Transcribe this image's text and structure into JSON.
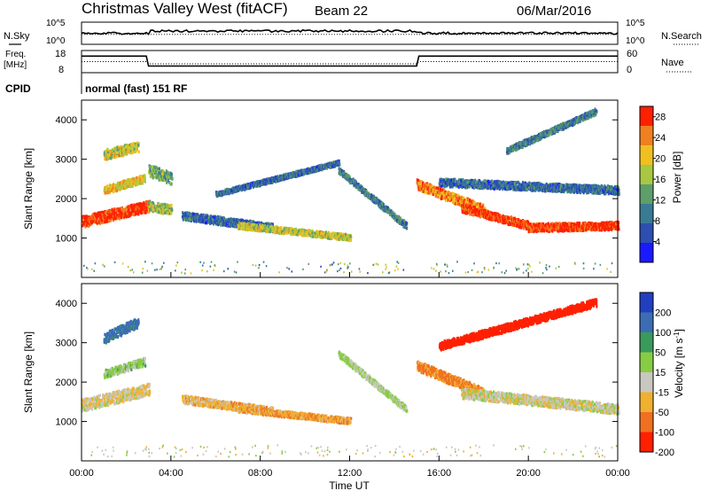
{
  "header": {
    "station": "Christmas Valley West (fitACF)",
    "beam": "Beam 22",
    "date": "06/Mar/2016"
  },
  "summary_panels": {
    "nsky": {
      "label": "N.Sky",
      "tick_top": "10^5",
      "tick_bottom": "10^0"
    },
    "nsearch": {
      "label": "N.Search",
      "tick_top": "10^5",
      "tick_bottom": "10^0"
    },
    "freq": {
      "label_line1": "Freq.",
      "label_line2": "[MHz]",
      "tick_top": "18",
      "tick_bottom": "8"
    },
    "nave": {
      "label": "Nave",
      "tick_top": "60",
      "tick_bottom": "0"
    },
    "cpid": {
      "label": "CPID",
      "text": "normal (fast) 151 RF"
    }
  },
  "chart_data": [
    {
      "type": "heatmap",
      "name": "power",
      "ylabel": "Slant Range [km]",
      "ylim": [
        0,
        4500
      ],
      "yticks": [
        "1000",
        "2000",
        "3000",
        "4000"
      ],
      "xlim": [
        "00:00",
        "24:00"
      ],
      "colorbar": {
        "label": "Power [dB]",
        "ticks": [
          "4",
          "8",
          "12",
          "16",
          "20",
          "24",
          "28"
        ],
        "range": [
          0,
          30
        ]
      },
      "colors": [
        "#1a1aff",
        "#2d4fb0",
        "#3a7a95",
        "#5f9e6a",
        "#a8c842",
        "#f0c020",
        "#f08020",
        "#ff2000"
      ],
      "features": [
        {
          "t": [
            0.0,
            3.0
          ],
          "r0": 1400,
          "r1": 1800,
          "w": 280,
          "p": 28
        },
        {
          "t": [
            1.0,
            2.8
          ],
          "r0": 2200,
          "r1": 2500,
          "w": 200,
          "p": 20
        },
        {
          "t": [
            1.0,
            2.5
          ],
          "r0": 3100,
          "r1": 3300,
          "w": 250,
          "p": 18
        },
        {
          "t": [
            3.0,
            4.0
          ],
          "r0": 2700,
          "r1": 2500,
          "w": 300,
          "p": 14
        },
        {
          "t": [
            3.0,
            4.0
          ],
          "r0": 1800,
          "r1": 1700,
          "w": 250,
          "p": 16
        },
        {
          "t": [
            4.5,
            8.5
          ],
          "r0": 1550,
          "r1": 1250,
          "w": 200,
          "p": 8
        },
        {
          "t": [
            7.0,
            12.0
          ],
          "r0": 1300,
          "r1": 1000,
          "w": 150,
          "p": 18
        },
        {
          "t": [
            6.0,
            11.5
          ],
          "r0": 2100,
          "r1": 2900,
          "w": 120,
          "p": 8
        },
        {
          "t": [
            11.5,
            14.5
          ],
          "r0": 2700,
          "r1": 1300,
          "w": 150,
          "p": 10
        },
        {
          "t": [
            15.0,
            18.0
          ],
          "r0": 2350,
          "r1": 1700,
          "w": 250,
          "p": 24
        },
        {
          "t": [
            17.0,
            20.0
          ],
          "r0": 1750,
          "r1": 1300,
          "w": 200,
          "p": 28
        },
        {
          "t": [
            20.0,
            24.0
          ],
          "r0": 1250,
          "r1": 1300,
          "w": 200,
          "p": 28
        },
        {
          "t": [
            16.0,
            24.0
          ],
          "r0": 2400,
          "r1": 2200,
          "w": 200,
          "p": 8
        },
        {
          "t": [
            19.0,
            23.0
          ],
          "r0": 3200,
          "r1": 4200,
          "w": 150,
          "p": 10
        }
      ]
    },
    {
      "type": "heatmap",
      "name": "velocity",
      "ylabel": "Slant Range [km]",
      "ylim": [
        0,
        4500
      ],
      "yticks": [
        "1000",
        "2000",
        "3000",
        "4000"
      ],
      "xlim": [
        "00:00",
        "24:00"
      ],
      "xticks": [
        "00:00",
        "04:00",
        "08:00",
        "12:00",
        "16:00",
        "20:00",
        "00:00"
      ],
      "xlabel": "Time UT",
      "colorbar": {
        "label": "Velocity [m s^-1]",
        "ticks": [
          "200",
          "100",
          "50",
          "15",
          "-15",
          "-50",
          "-100",
          "-200"
        ]
      },
      "colors": [
        "#2040c0",
        "#3c6db4",
        "#3a9a5a",
        "#88cc44",
        "#c8c8c0",
        "#f0b030",
        "#f07020",
        "#ff2000"
      ],
      "features": [
        {
          "t": [
            0.0,
            3.0
          ],
          "r0": 1400,
          "r1": 1800,
          "w": 300,
          "v": -10
        },
        {
          "t": [
            1.0,
            2.8
          ],
          "r0": 2200,
          "r1": 2500,
          "w": 200,
          "v": 30
        },
        {
          "t": [
            1.0,
            2.5
          ],
          "r0": 3100,
          "r1": 3500,
          "w": 250,
          "v": 120
        },
        {
          "t": [
            4.5,
            8.5
          ],
          "r0": 1550,
          "r1": 1250,
          "w": 200,
          "v": -30
        },
        {
          "t": [
            7.0,
            12.0
          ],
          "r0": 1300,
          "r1": 1000,
          "w": 150,
          "v": -40
        },
        {
          "t": [
            11.5,
            14.5
          ],
          "r0": 2700,
          "r1": 1300,
          "w": 150,
          "v": 20
        },
        {
          "t": [
            15.0,
            18.0
          ],
          "r0": 2400,
          "r1": 1700,
          "w": 250,
          "v": -60
        },
        {
          "t": [
            17.0,
            24.0
          ],
          "r0": 1700,
          "r1": 1300,
          "w": 250,
          "v": 0
        },
        {
          "t": [
            16.0,
            23.0
          ],
          "r0": 2900,
          "r1": 4000,
          "w": 200,
          "v": -200
        }
      ]
    }
  ]
}
